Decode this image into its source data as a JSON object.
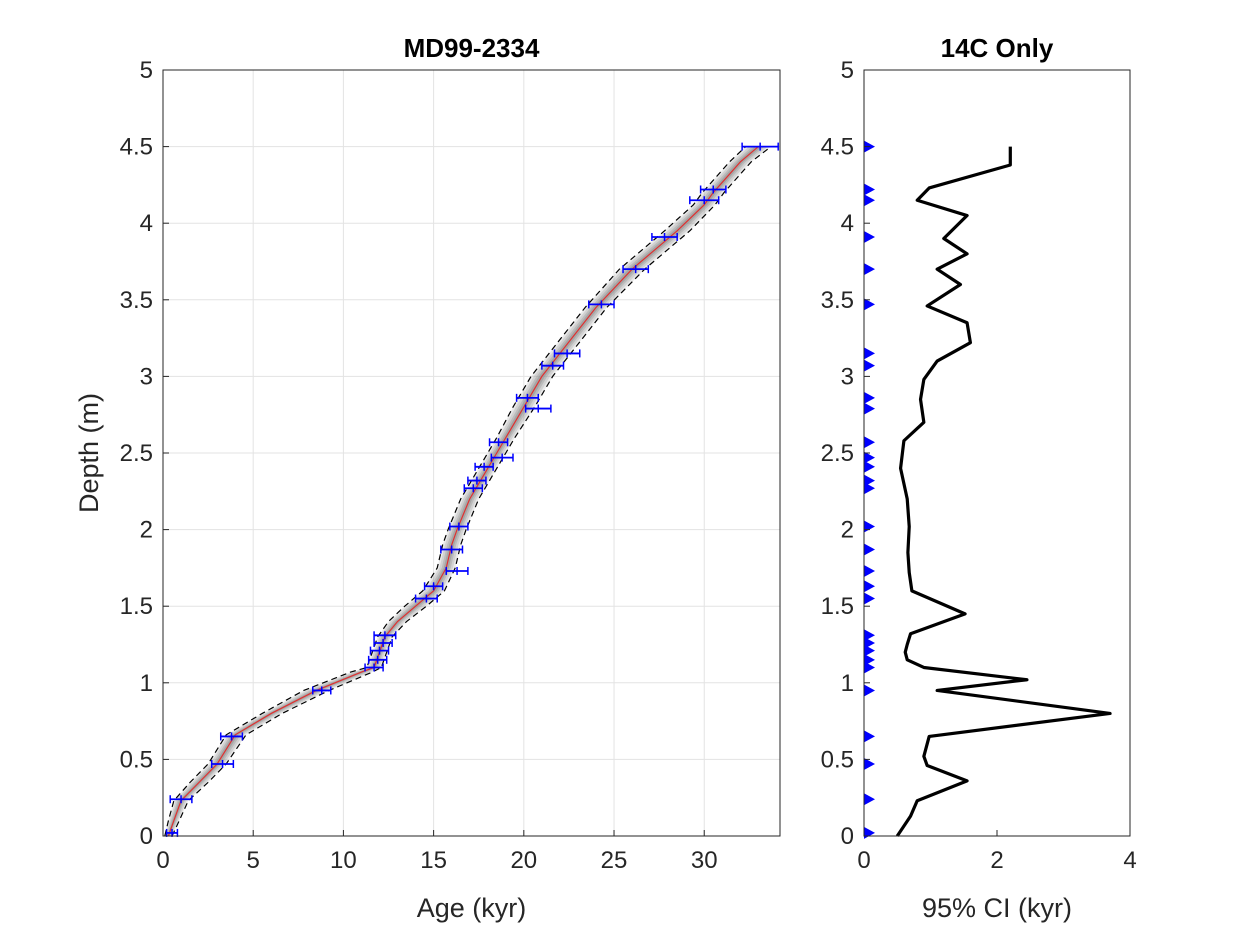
{
  "chart_data": [
    {
      "type": "line",
      "title": "MD99-2334",
      "xlabel": "Age (kyr)",
      "ylabel": "Depth (m)",
      "xlim": [
        0,
        34.2
      ],
      "ylim": [
        0,
        5
      ],
      "xticks": [
        "0",
        "5",
        "10",
        "15",
        "20",
        "25",
        "30"
      ],
      "yticks": [
        "0",
        "0.5",
        "1",
        "1.5",
        "2",
        "2.5",
        "3",
        "3.5",
        "4",
        "4.5",
        "5"
      ],
      "grid": true,
      "colors": {
        "median": "#e03030",
        "ensemble": "#8c8c8c",
        "ci_bounds": "#000000",
        "dates": "#0000ff"
      },
      "series": [
        {
          "role": "median",
          "x": [
            0.3,
            0.6,
            1.0,
            2.0,
            3.0,
            4.0,
            6.0,
            8.5,
            11.0,
            11.7,
            12.0,
            12.3,
            13.0,
            14.0,
            15.0,
            15.7,
            16.0,
            16.3,
            17.0,
            17.5,
            18.0,
            18.5,
            19.0,
            20.0,
            21.0,
            22.0,
            24.0,
            26.0,
            27.5,
            28.5,
            30.0,
            30.5,
            32.0,
            33.0
          ],
          "y": [
            0.0,
            0.1,
            0.23,
            0.35,
            0.47,
            0.66,
            0.8,
            0.95,
            1.07,
            1.1,
            1.2,
            1.3,
            1.4,
            1.5,
            1.6,
            1.75,
            1.9,
            2.0,
            2.2,
            2.3,
            2.4,
            2.5,
            2.6,
            2.8,
            3.0,
            3.15,
            3.45,
            3.7,
            3.85,
            3.95,
            4.12,
            4.2,
            4.4,
            4.5
          ]
        },
        {
          "role": "ci_lower",
          "x": [
            0.1,
            0.3,
            0.6,
            1.5,
            2.5,
            3.5,
            5.5,
            7.8,
            10.4,
            11.3,
            11.6,
            11.9,
            12.5,
            13.4,
            14.4,
            15.2,
            15.5,
            15.8,
            16.5,
            17.0,
            17.5,
            18.0,
            18.5,
            19.4,
            20.4,
            21.4,
            23.4,
            25.3,
            26.8,
            27.8,
            29.4,
            29.9,
            31.4,
            32.3
          ],
          "y": [
            0.0,
            0.1,
            0.23,
            0.35,
            0.47,
            0.66,
            0.8,
            0.95,
            1.07,
            1.1,
            1.2,
            1.3,
            1.4,
            1.5,
            1.6,
            1.75,
            1.9,
            2.0,
            2.2,
            2.3,
            2.4,
            2.5,
            2.6,
            2.8,
            3.0,
            3.15,
            3.45,
            3.7,
            3.85,
            3.95,
            4.12,
            4.2,
            4.4,
            4.5
          ]
        },
        {
          "role": "ci_upper",
          "x": [
            0.5,
            0.9,
            1.4,
            2.5,
            3.5,
            4.6,
            6.6,
            9.2,
            11.6,
            12.1,
            12.4,
            12.7,
            13.5,
            14.6,
            15.6,
            16.2,
            16.5,
            16.8,
            17.5,
            18.0,
            18.5,
            19.0,
            19.5,
            20.6,
            21.6,
            22.6,
            24.6,
            26.7,
            28.2,
            29.2,
            30.6,
            31.1,
            32.6,
            33.7
          ],
          "y": [
            0.0,
            0.1,
            0.23,
            0.35,
            0.47,
            0.66,
            0.8,
            0.95,
            1.07,
            1.1,
            1.2,
            1.3,
            1.4,
            1.5,
            1.6,
            1.75,
            1.9,
            2.0,
            2.2,
            2.3,
            2.4,
            2.5,
            2.6,
            2.8,
            3.0,
            3.15,
            3.45,
            3.7,
            3.85,
            3.95,
            4.12,
            4.2,
            4.4,
            4.5
          ]
        }
      ],
      "dates": [
        {
          "age": 0.5,
          "depth": 0.02,
          "err": 0.3
        },
        {
          "age": 1.0,
          "depth": 0.24,
          "err": 0.6
        },
        {
          "age": 3.3,
          "depth": 0.47,
          "err": 0.6
        },
        {
          "age": 3.8,
          "depth": 0.65,
          "err": 0.6
        },
        {
          "age": 8.8,
          "depth": 0.95,
          "err": 0.5
        },
        {
          "age": 11.7,
          "depth": 1.1,
          "err": 0.5
        },
        {
          "age": 11.9,
          "depth": 1.15,
          "err": 0.5
        },
        {
          "age": 12.0,
          "depth": 1.21,
          "err": 0.5
        },
        {
          "age": 12.2,
          "depth": 1.26,
          "err": 0.5
        },
        {
          "age": 12.3,
          "depth": 1.31,
          "err": 0.6
        },
        {
          "age": 14.6,
          "depth": 1.55,
          "err": 0.6
        },
        {
          "age": 15.0,
          "depth": 1.63,
          "err": 0.5
        },
        {
          "age": 16.3,
          "depth": 1.73,
          "err": 0.6
        },
        {
          "age": 16.0,
          "depth": 1.87,
          "err": 0.6
        },
        {
          "age": 16.4,
          "depth": 2.02,
          "err": 0.5
        },
        {
          "age": 17.2,
          "depth": 2.27,
          "err": 0.5
        },
        {
          "age": 17.4,
          "depth": 2.32,
          "err": 0.5
        },
        {
          "age": 17.8,
          "depth": 2.41,
          "err": 0.5
        },
        {
          "age": 18.8,
          "depth": 2.47,
          "err": 0.6
        },
        {
          "age": 18.6,
          "depth": 2.57,
          "err": 0.5
        },
        {
          "age": 20.8,
          "depth": 2.79,
          "err": 0.7
        },
        {
          "age": 20.2,
          "depth": 2.86,
          "err": 0.6
        },
        {
          "age": 21.6,
          "depth": 3.07,
          "err": 0.6
        },
        {
          "age": 22.4,
          "depth": 3.15,
          "err": 0.7
        },
        {
          "age": 24.3,
          "depth": 3.47,
          "err": 0.7
        },
        {
          "age": 26.2,
          "depth": 3.7,
          "err": 0.7
        },
        {
          "age": 27.8,
          "depth": 3.91,
          "err": 0.7
        },
        {
          "age": 30.0,
          "depth": 4.15,
          "err": 0.8
        },
        {
          "age": 30.5,
          "depth": 4.22,
          "err": 0.7
        },
        {
          "age": 33.1,
          "depth": 4.5,
          "err": 1.0
        }
      ]
    },
    {
      "type": "line",
      "title": "14C Only",
      "xlabel": "95% CI (kyr)",
      "ylabel": "",
      "xlim": [
        0,
        4
      ],
      "ylim": [
        0,
        5
      ],
      "xticks": [
        "0",
        "2",
        "4"
      ],
      "yticks": [
        "0",
        "0.5",
        "1",
        "1.5",
        "2",
        "2.5",
        "3",
        "3.5",
        "4",
        "4.5",
        "5"
      ],
      "grid": false,
      "colors": {
        "line": "#000000",
        "markers": "#0000ff"
      },
      "series": [
        {
          "role": "ci_width",
          "x": [
            0.5,
            0.7,
            0.8,
            1.55,
            0.95,
            0.9,
            0.98,
            3.7,
            1.1,
            2.45,
            0.9,
            0.65,
            0.62,
            0.65,
            0.7,
            1.52,
            0.72,
            0.68,
            0.66,
            0.68,
            0.65,
            0.55,
            0.6,
            0.9,
            0.85,
            0.9,
            1.1,
            1.6,
            1.55,
            0.95,
            1.45,
            1.1,
            1.55,
            1.2,
            1.55,
            0.8,
            0.98,
            2.2,
            2.2
          ],
          "y": [
            0.0,
            0.13,
            0.23,
            0.36,
            0.46,
            0.52,
            0.65,
            0.8,
            0.95,
            1.02,
            1.1,
            1.15,
            1.2,
            1.25,
            1.32,
            1.45,
            1.6,
            1.72,
            1.85,
            2.02,
            2.2,
            2.4,
            2.58,
            2.7,
            2.85,
            2.98,
            3.1,
            3.22,
            3.35,
            3.46,
            3.6,
            3.7,
            3.8,
            3.9,
            4.05,
            4.15,
            4.23,
            4.38,
            4.5
          ]
        }
      ],
      "markers_depth": [
        0.02,
        0.24,
        0.47,
        0.65,
        0.95,
        1.1,
        1.15,
        1.21,
        1.26,
        1.31,
        1.55,
        1.63,
        1.73,
        1.87,
        2.02,
        2.27,
        2.32,
        2.41,
        2.47,
        2.57,
        2.79,
        2.86,
        3.07,
        3.15,
        3.47,
        3.7,
        3.91,
        4.15,
        4.22,
        4.5
      ]
    }
  ]
}
